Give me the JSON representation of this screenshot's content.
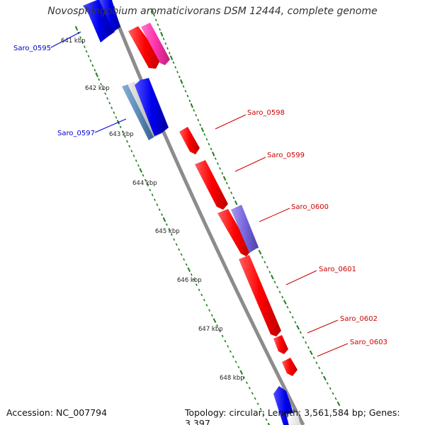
{
  "title": "Novosphingobium aromaticivorans DSM 12444, complete genome",
  "accession_text": "Accession: NC_007794",
  "topology_text": "Topology: circular; Length: 3,561,584 bp; Genes: 3,397",
  "kbp_ticks": [
    "641 kbp",
    "642 kbp",
    "643 kbp",
    "644 kbp",
    "645 kbp",
    "646 kbp",
    "647 kbp",
    "648 kbp"
  ],
  "gene_labels": [
    {
      "name": "Saro_0595",
      "strand": "minus"
    },
    {
      "name": "Saro_0597",
      "strand": "minus"
    },
    {
      "name": "Saro_0598",
      "strand": "plus"
    },
    {
      "name": "Saro_0599",
      "strand": "plus"
    },
    {
      "name": "Saro_0600",
      "strand": "plus"
    },
    {
      "name": "Saro_0601",
      "strand": "plus"
    },
    {
      "name": "Saro_0602",
      "strand": "plus"
    },
    {
      "name": "Saro_0603",
      "strand": "plus"
    }
  ],
  "colors": {
    "backbone": "#8c8c8c",
    "tick_green": "#1a7f1a",
    "plus_gene": "#ff0000",
    "minus_gene": "#0000ee",
    "pink_gene": "#ff33aa",
    "purple_gene": "#7766dd",
    "steel_gene": "#5a8ab8",
    "grey_gene": "#c8c8c8",
    "label_red": "#cc0000",
    "label_blue": "#0000cc"
  }
}
